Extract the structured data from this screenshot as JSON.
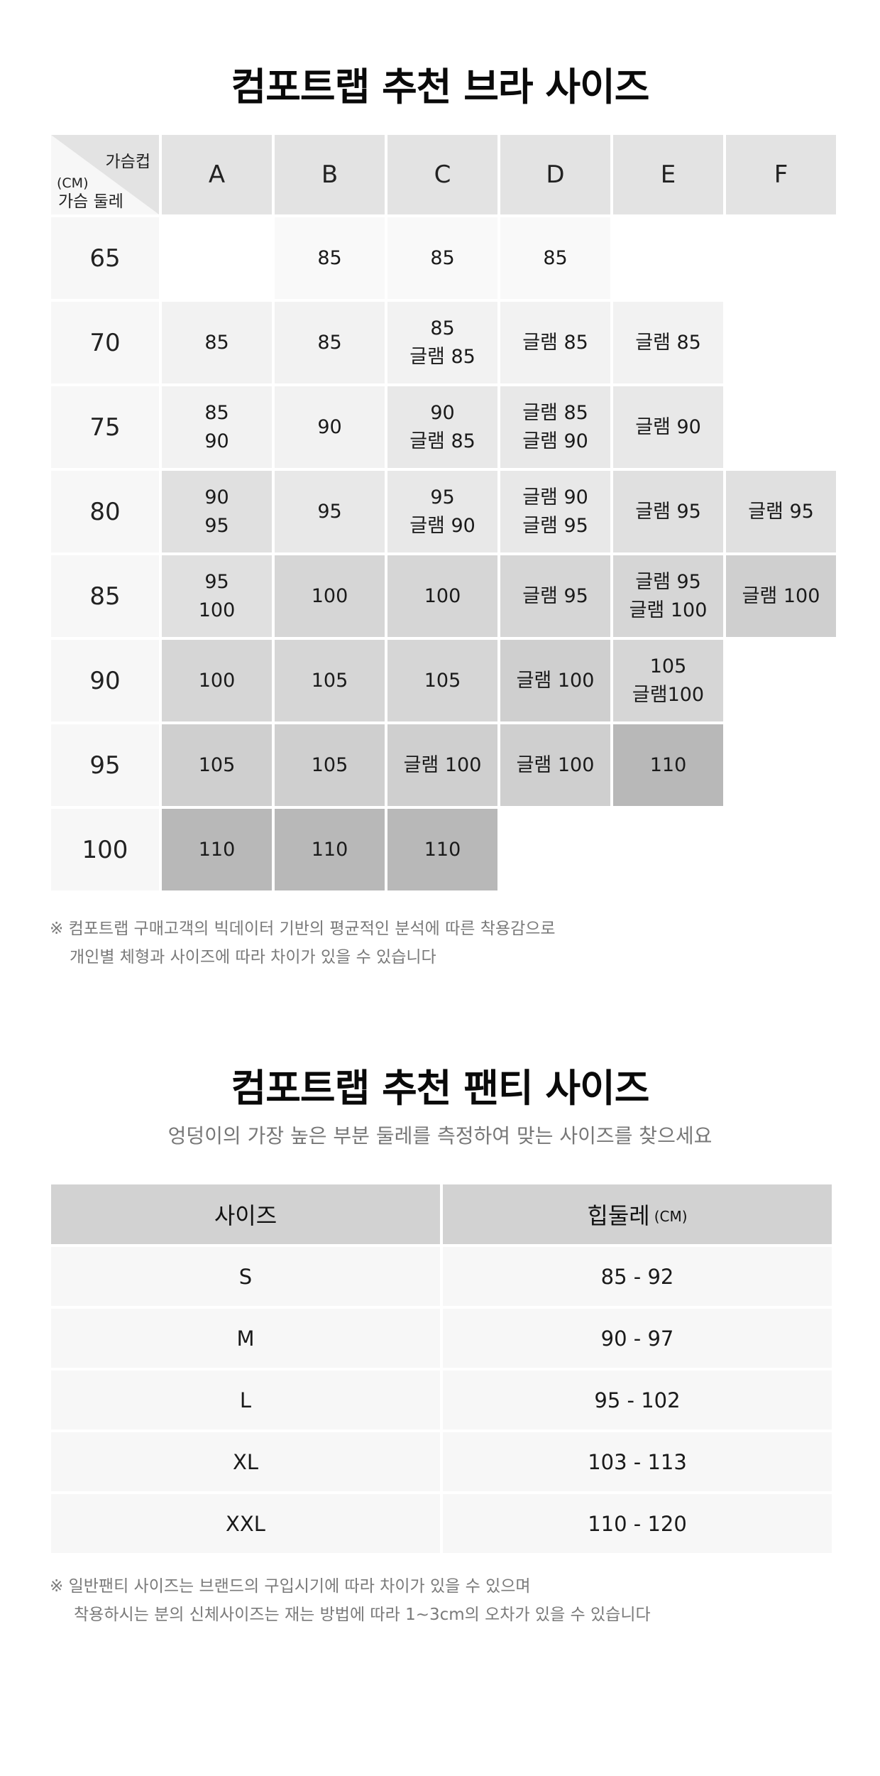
{
  "bra": {
    "title": "컴포트랩 추천 브라 사이즈",
    "corner": {
      "cup_label": "가슴컵",
      "unit": "(CM)",
      "band_label": "가슴 둘레"
    },
    "cups": [
      "A",
      "B",
      "C",
      "D",
      "E",
      "F"
    ],
    "rows": [
      {
        "band": "65",
        "cells": [
          [],
          [
            "85"
          ],
          [
            "85"
          ],
          [
            "85"
          ],
          [],
          []
        ]
      },
      {
        "band": "70",
        "cells": [
          [
            "85"
          ],
          [
            "85"
          ],
          [
            "85",
            "글램 85"
          ],
          [
            "글램 85"
          ],
          [
            "글램 85"
          ],
          []
        ]
      },
      {
        "band": "75",
        "cells": [
          [
            "85",
            "90"
          ],
          [
            "90"
          ],
          [
            "90",
            "글램 85"
          ],
          [
            "글램 85",
            "글램 90"
          ],
          [
            "글램 90"
          ],
          []
        ]
      },
      {
        "band": "80",
        "cells": [
          [
            "90",
            "95"
          ],
          [
            "95"
          ],
          [
            "95",
            "글램 90"
          ],
          [
            "글램 90",
            "글램 95"
          ],
          [
            "글램 95"
          ],
          [
            "글램 95"
          ]
        ]
      },
      {
        "band": "85",
        "cells": [
          [
            "95",
            "100"
          ],
          [
            "100"
          ],
          [
            "100"
          ],
          [
            "글램 95"
          ],
          [
            "글램 95",
            "글램 100"
          ],
          [
            "글램 100"
          ]
        ]
      },
      {
        "band": "90",
        "cells": [
          [
            "100"
          ],
          [
            "105"
          ],
          [
            "105"
          ],
          [
            "글램 100"
          ],
          [
            "105",
            "글램100"
          ],
          []
        ]
      },
      {
        "band": "95",
        "cells": [
          [
            "105"
          ],
          [
            "105"
          ],
          [
            "글램 100"
          ],
          [
            "글램 100"
          ],
          [
            "110"
          ],
          []
        ]
      },
      {
        "band": "100",
        "cells": [
          [
            "110"
          ],
          [
            "110"
          ],
          [
            "110"
          ],
          [],
          [],
          []
        ]
      }
    ],
    "note": [
      "※ 컴포트랩 구매고객의 빅데이터 기반의 평균적인 분석에 따른 착용감으로",
      "개인별 체형과 사이즈에 따라 차이가 있을 수 있습니다"
    ]
  },
  "panty": {
    "title": "컴포트랩 추천 팬티 사이즈",
    "subtitle": "엉덩이의 가장 높은 부분 둘레를 측정하여 맞는 사이즈를 찾으세요",
    "header": {
      "size": "사이즈",
      "hip": "힙둘레",
      "hip_unit": "(CM)"
    },
    "rows": [
      {
        "size": "S",
        "hip": "85 - 92"
      },
      {
        "size": "M",
        "hip": "90 - 97"
      },
      {
        "size": "L",
        "hip": "95 - 102"
      },
      {
        "size": "XL",
        "hip": "103 - 113"
      },
      {
        "size": "XXL",
        "hip": "110 - 120"
      }
    ],
    "note": [
      "※  일반팬티 사이즈는 브랜드의 구입시기에 따라 차이가 있을 수 있으며",
      "착용하시는 분의 신체사이즈는 재는 방법에 따라 1~3cm의 오차가 있을 수 있습니다"
    ]
  },
  "colors": {
    "band_header_bg": "#f7f7f7",
    "cup_header_bg": "#e3e3e3",
    "shade_1": "#f9f9f9",
    "shade_2": "#f2f2f2",
    "shade_3": "#e8e8e8",
    "shade_4": "#e0e0e0",
    "shade_5": "#d6d6d6",
    "shade_6": "#cfcfcf",
    "shade_7": "#b8b8b8",
    "table_header_bg": "#d2d2d2",
    "table_row_bg": "#f7f7f7"
  }
}
